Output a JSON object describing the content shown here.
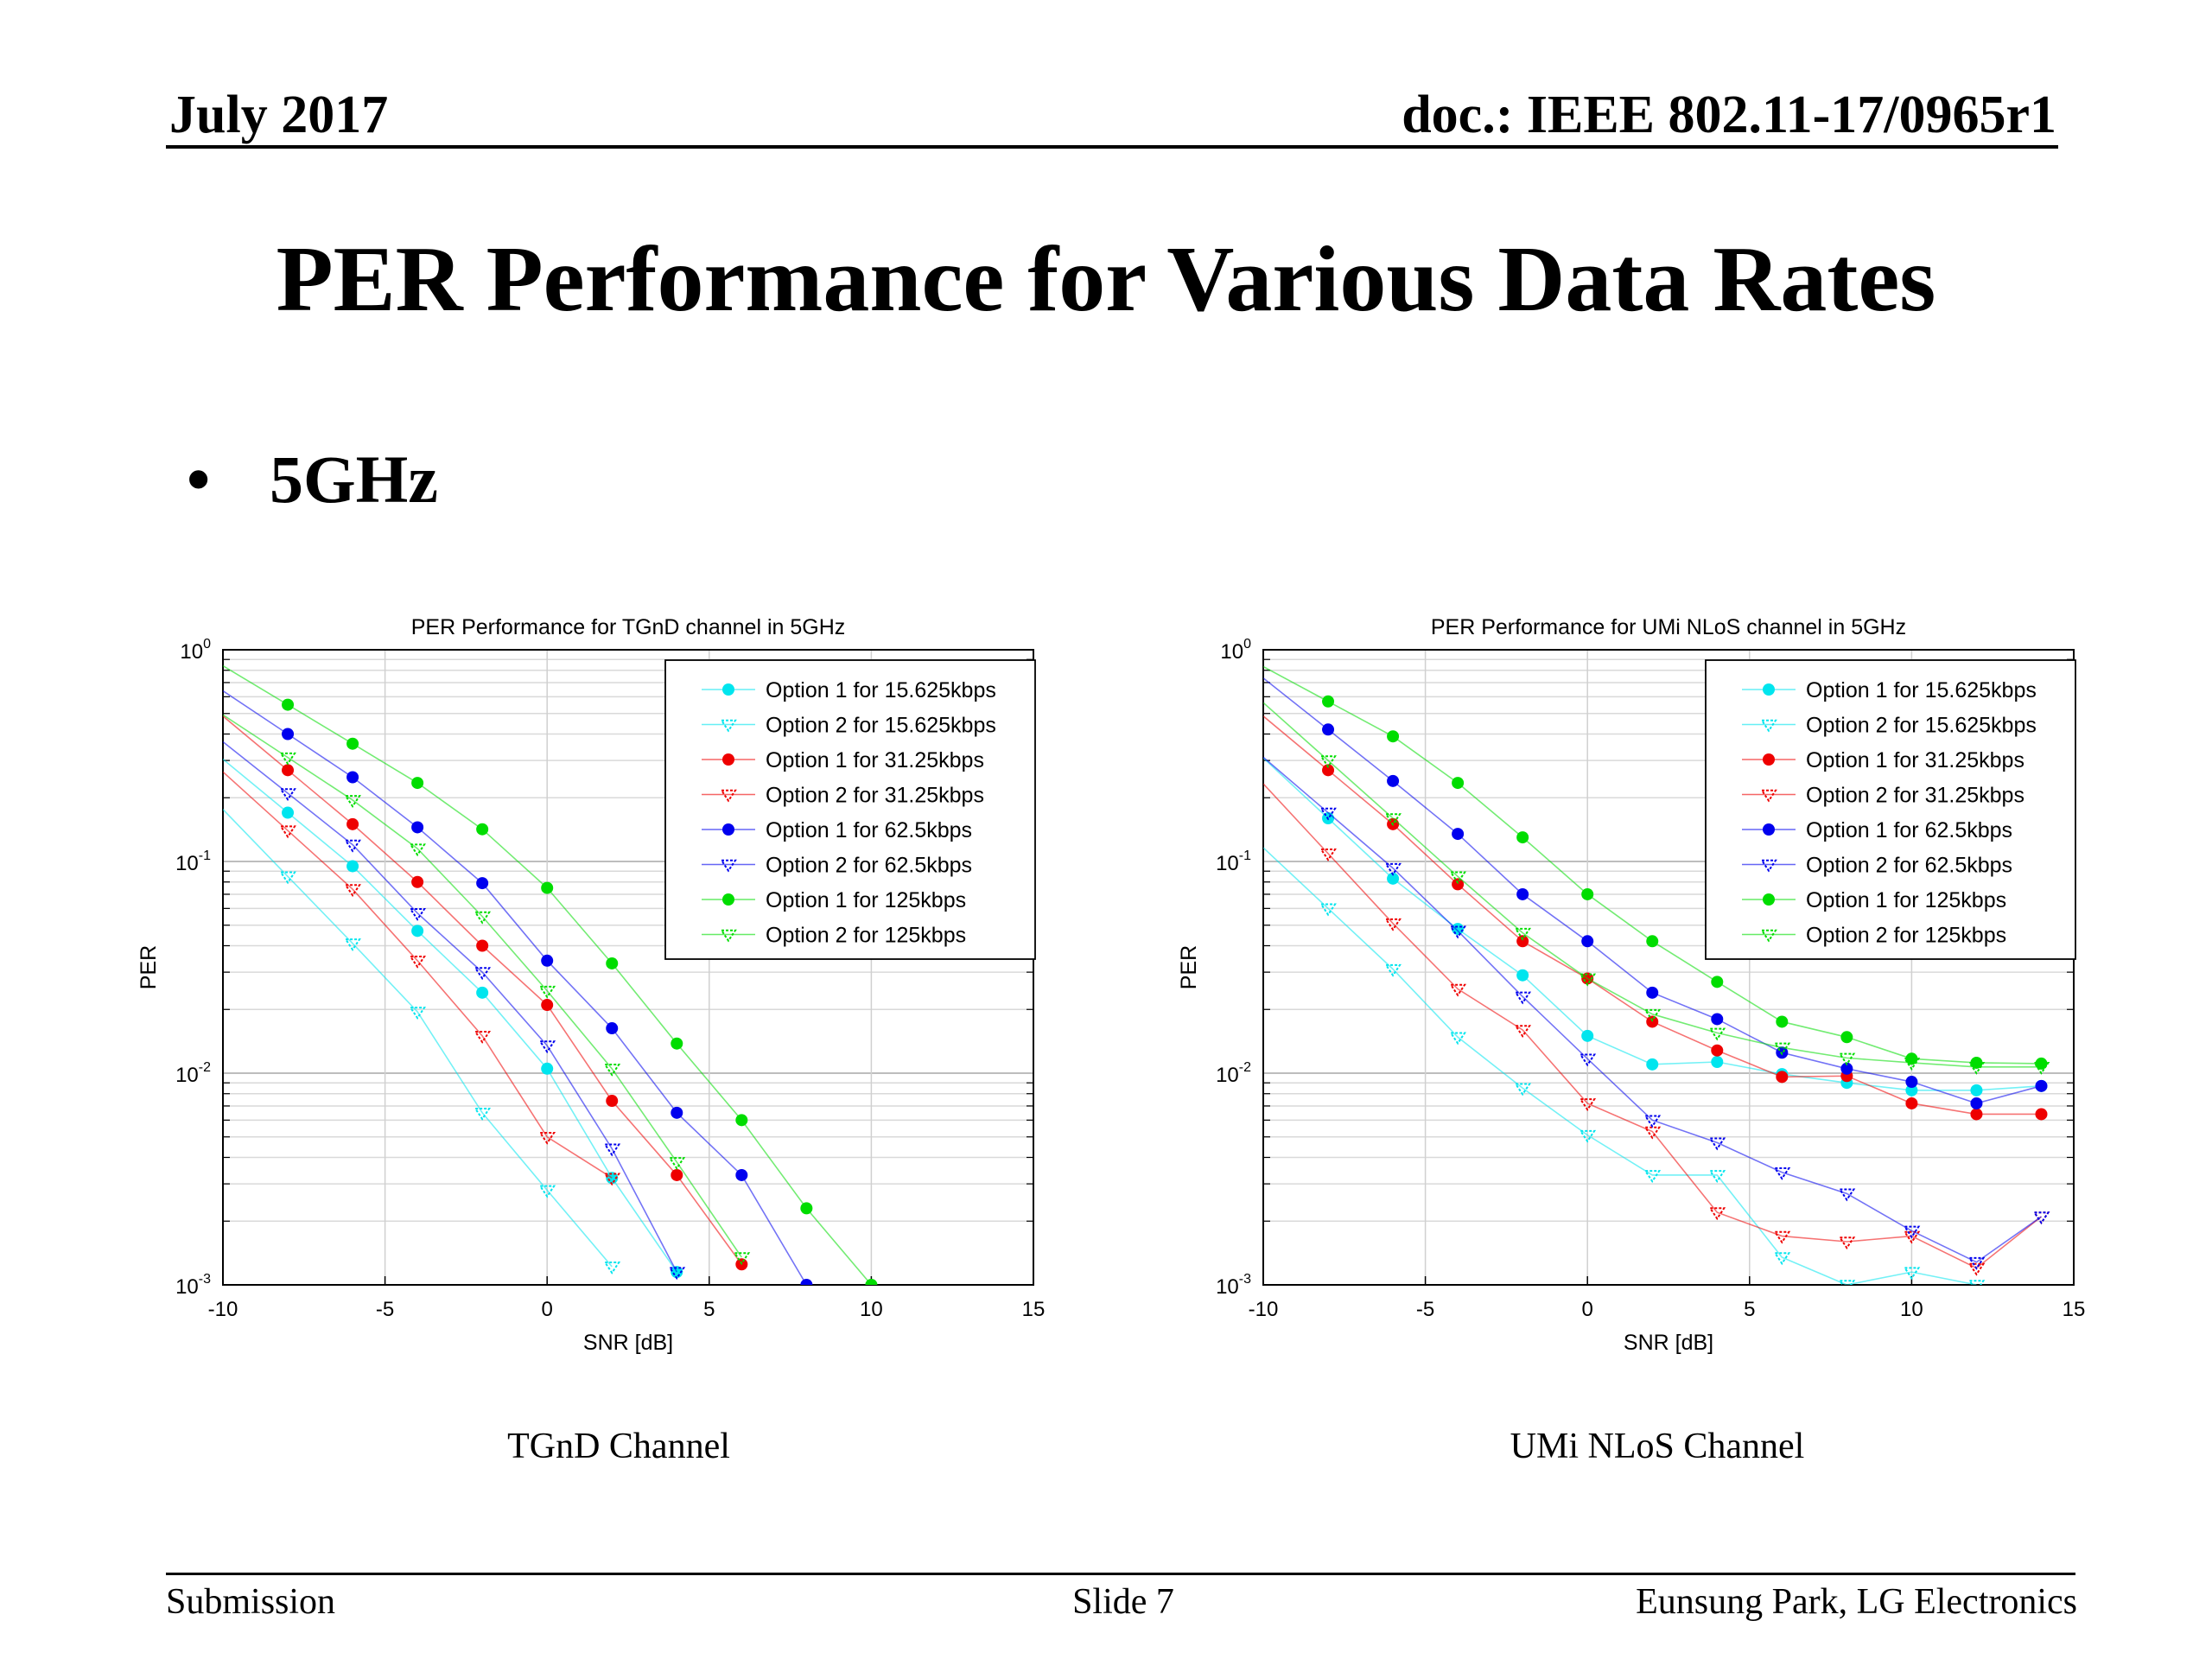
{
  "header": {
    "date": "July 2017",
    "doc": "doc.: IEEE 802.11-17/0965r1"
  },
  "slide_title": "PER Performance for Various Data Rates",
  "bullet": {
    "symbol": "•",
    "text": "5GHz"
  },
  "captions": [
    "TGnD Channel",
    "UMi NLoS Channel"
  ],
  "footer": {
    "left": "Submission",
    "center": "Slide 7",
    "right": "Eunsung Park, LG Electronics"
  },
  "series_styles": [
    {
      "name": "Option 1 for 15.625kbps",
      "color": "#00e5ee",
      "marker": "dot"
    },
    {
      "name": "Option 2 for 15.625kbps",
      "color": "#00e5ee",
      "marker": "tri"
    },
    {
      "name": "Option 1 for 31.25kbps",
      "color": "#ee0000",
      "marker": "dot"
    },
    {
      "name": "Option 2 for 31.25kbps",
      "color": "#ee0000",
      "marker": "tri"
    },
    {
      "name": "Option 1 for 62.5kbps",
      "color": "#0000ee",
      "marker": "dot"
    },
    {
      "name": "Option 2 for 62.5kbps",
      "color": "#0000ee",
      "marker": "tri"
    },
    {
      "name": "Option 1 for 125kbps",
      "color": "#00dd00",
      "marker": "dot"
    },
    {
      "name": "Option 2 for 125kbps",
      "color": "#00dd00",
      "marker": "tri"
    }
  ],
  "chart_data": [
    {
      "type": "scatter",
      "title": "PER Performance for TGnD channel in 5GHz",
      "xlabel": "SNR [dB]",
      "ylabel": "PER",
      "xlim": [
        -10,
        15
      ],
      "ylim": [
        0.001,
        1
      ],
      "yscale": "log",
      "xticks": [
        -10,
        -5,
        0,
        5,
        10,
        15
      ],
      "yticks": [
        "10^0",
        "10^-1",
        "10^-2",
        "10^-3"
      ],
      "grid": true,
      "legend_position": "top-right",
      "series": [
        {
          "name": "Option 1 for 15.625kbps",
          "x": [
            -8,
            -6,
            -4,
            -2,
            0,
            2,
            4
          ],
          "y": [
            0.17,
            0.095,
            0.047,
            0.024,
            0.0105,
            0.0032,
            0.00115
          ]
        },
        {
          "name": "Option 2 for 15.625kbps",
          "x": [
            -8,
            -6,
            -4,
            -2,
            0,
            2
          ],
          "y": [
            0.085,
            0.041,
            0.0195,
            0.0065,
            0.0028,
            0.00122
          ]
        },
        {
          "name": "Option 1 for 31.25kbps",
          "x": [
            -8,
            -6,
            -4,
            -2,
            0,
            2,
            4,
            6
          ],
          "y": [
            0.27,
            0.15,
            0.08,
            0.04,
            0.021,
            0.0074,
            0.0033,
            0.00125
          ]
        },
        {
          "name": "Option 2 for 31.25kbps",
          "x": [
            -8,
            -6,
            -4,
            -2,
            0,
            2
          ],
          "y": [
            0.14,
            0.074,
            0.034,
            0.015,
            0.005,
            0.0032
          ]
        },
        {
          "name": "Option 1 for 62.5kbps",
          "x": [
            -8,
            -6,
            -4,
            -2,
            0,
            2,
            4,
            6,
            8
          ],
          "y": [
            0.4,
            0.25,
            0.145,
            0.079,
            0.034,
            0.0163,
            0.0065,
            0.0033,
            0.001
          ]
        },
        {
          "name": "Option 2 for 62.5kbps",
          "x": [
            -8,
            -6,
            -4,
            -2,
            0,
            2,
            4
          ],
          "y": [
            0.21,
            0.12,
            0.057,
            0.03,
            0.0135,
            0.0044,
            0.00115
          ]
        },
        {
          "name": "Option 1 for 125kbps",
          "x": [
            -8,
            -6,
            -4,
            -2,
            0,
            2,
            4,
            6,
            8,
            10
          ],
          "y": [
            0.55,
            0.36,
            0.235,
            0.142,
            0.075,
            0.033,
            0.0138,
            0.006,
            0.0023,
            0.001
          ]
        },
        {
          "name": "Option 2 for 125kbps",
          "x": [
            -8,
            -6,
            -4,
            -2,
            0,
            2,
            4,
            6
          ],
          "y": [
            0.31,
            0.195,
            0.115,
            0.055,
            0.0245,
            0.0105,
            0.0038,
            0.00135
          ]
        }
      ]
    },
    {
      "type": "scatter",
      "title": "PER Performance for UMi NLoS channel in 5GHz",
      "xlabel": "SNR [dB]",
      "ylabel": "PER",
      "xlim": [
        -10,
        15
      ],
      "ylim": [
        0.001,
        1
      ],
      "yscale": "log",
      "xticks": [
        -10,
        -5,
        0,
        5,
        10,
        15
      ],
      "yticks": [
        "10^0",
        "10^-1",
        "10^-2",
        "10^-3"
      ],
      "grid": true,
      "legend_position": "top-right",
      "series": [
        {
          "name": "Option 1 for 15.625kbps",
          "x": [
            -8,
            -6,
            -4,
            -2,
            0,
            2,
            4,
            6,
            8,
            10,
            12,
            14
          ],
          "y": [
            0.16,
            0.083,
            0.048,
            0.029,
            0.015,
            0.011,
            0.0113,
            0.0099,
            0.009,
            0.0083,
            0.0083,
            0.0087
          ]
        },
        {
          "name": "Option 2 for 15.625kbps",
          "x": [
            -8,
            -6,
            -4,
            -2,
            0,
            2,
            4,
            6,
            8,
            10,
            12
          ],
          "y": [
            0.06,
            0.031,
            0.0148,
            0.0085,
            0.0051,
            0.0033,
            0.0033,
            0.00135,
            0.001,
            0.00115,
            0.001
          ]
        },
        {
          "name": "Option 1 for 31.25kbps",
          "x": [
            -8,
            -6,
            -4,
            -2,
            0,
            2,
            4,
            6,
            8,
            10,
            12,
            14
          ],
          "y": [
            0.27,
            0.15,
            0.078,
            0.042,
            0.028,
            0.0175,
            0.0128,
            0.0096,
            0.0097,
            0.0072,
            0.0064,
            0.0064
          ]
        },
        {
          "name": "Option 2 for 31.25kbps",
          "x": [
            -8,
            -6,
            -4,
            -2,
            0,
            2,
            4,
            6,
            8,
            10,
            12,
            14
          ],
          "y": [
            0.109,
            0.051,
            0.025,
            0.016,
            0.0072,
            0.0053,
            0.0022,
            0.0017,
            0.0016,
            0.0017,
            0.0012,
            0.0021
          ]
        },
        {
          "name": "Option 1 for 62.5kbps",
          "x": [
            -8,
            -6,
            -4,
            -2,
            0,
            2,
            4,
            6,
            8,
            10,
            12,
            14
          ],
          "y": [
            0.42,
            0.24,
            0.135,
            0.07,
            0.042,
            0.024,
            0.018,
            0.0125,
            0.0105,
            0.0091,
            0.0072,
            0.0087
          ]
        },
        {
          "name": "Option 2 for 62.5kbps",
          "x": [
            -8,
            -6,
            -4,
            -2,
            0,
            2,
            4,
            6,
            8,
            10,
            12,
            14
          ],
          "y": [
            0.17,
            0.093,
            0.047,
            0.023,
            0.0117,
            0.006,
            0.0047,
            0.0034,
            0.0027,
            0.0018,
            0.00128,
            0.0021
          ]
        },
        {
          "name": "Option 1 for 125kbps",
          "x": [
            -8,
            -6,
            -4,
            -2,
            0,
            2,
            4,
            6,
            8,
            10,
            12,
            14
          ],
          "y": [
            0.57,
            0.39,
            0.235,
            0.13,
            0.07,
            0.042,
            0.027,
            0.0175,
            0.0148,
            0.0117,
            0.0112,
            0.0111
          ]
        },
        {
          "name": "Option 2 for 125kbps",
          "x": [
            -8,
            -6,
            -4,
            -2,
            0,
            2,
            4,
            6,
            8,
            10,
            12,
            14
          ],
          "y": [
            0.3,
            0.16,
            0.085,
            0.046,
            0.028,
            0.019,
            0.0155,
            0.0132,
            0.0118,
            0.0112,
            0.0107,
            0.0107
          ]
        }
      ]
    }
  ]
}
